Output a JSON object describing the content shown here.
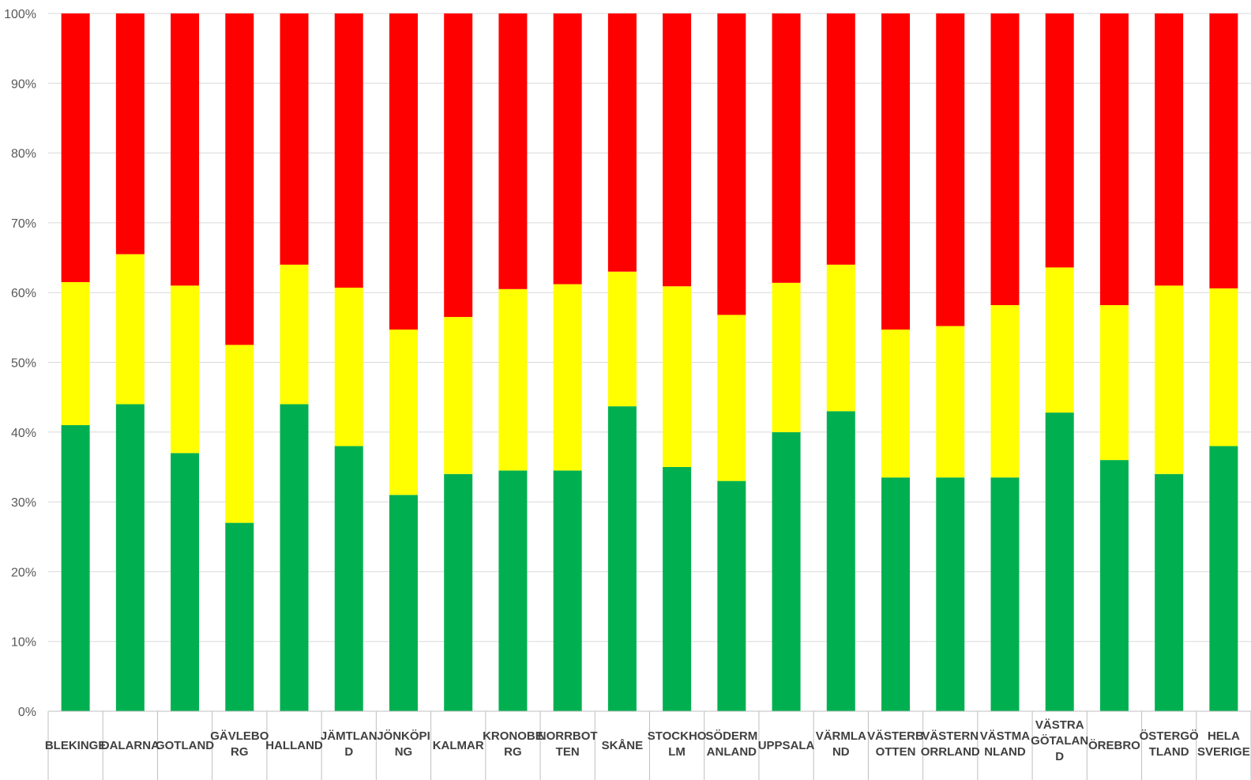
{
  "chart_data": {
    "type": "bar",
    "stacked": true,
    "percent_stacked": true,
    "categories": [
      "BLEKINGE",
      "DALARNA",
      "GOTLAND",
      "GÄVLEBORG",
      "HALLAND",
      "JÄMTLAND",
      "JÖNKÖPING",
      "KALMAR",
      "KRONOBERG",
      "NORRBOTTEN",
      "SKÅNE",
      "STOCKHOLM",
      "SÖDERMANLAND",
      "UPPSALA",
      "VÄRMLAND",
      "VÄSTERBOTTEN",
      "VÄSTERNORRLAND",
      "VÄSTMANLAND",
      "VÄSTRA GÖTALAND",
      "ÖREBRO",
      "ÖSTERGÖTLAND",
      "HELA SVERIGE"
    ],
    "category_labels": [
      [
        "BLEKINGE"
      ],
      [
        "DALARNA"
      ],
      [
        "GOTLAND"
      ],
      [
        "GÄVLEBO",
        "RG"
      ],
      [
        "HALLAND"
      ],
      [
        "JÄMTLAN",
        "D"
      ],
      [
        "JÖNKÖPI",
        "NG"
      ],
      [
        "KALMAR"
      ],
      [
        "KRONOBE",
        "RG"
      ],
      [
        "NORRBOT",
        "TEN"
      ],
      [
        "SKÅNE"
      ],
      [
        "STOCKHO",
        "LM"
      ],
      [
        "SÖDERM",
        "ANLAND"
      ],
      [
        "UPPSALA"
      ],
      [
        "VÄRMLA",
        "ND"
      ],
      [
        "VÄSTERB",
        "OTTEN"
      ],
      [
        "VÄSTERN",
        "ORRLAND"
      ],
      [
        "VÄSTMA",
        "NLAND"
      ],
      [
        "VÄSTRA",
        "GÖTALAN",
        "D"
      ],
      [
        "ÖREBRO"
      ],
      [
        "ÖSTERGÖ",
        "TLAND"
      ],
      [
        "HELA",
        "SVERIGE"
      ]
    ],
    "series": [
      {
        "color": "#00B050",
        "values": [
          41,
          44,
          37,
          27,
          44,
          38,
          31,
          34,
          34.5,
          34.5,
          43.7,
          35,
          33,
          40,
          43,
          33.5,
          33.5,
          33.5,
          42.8,
          36,
          34,
          38
        ]
      },
      {
        "color": "#FFFF00",
        "values": [
          20.5,
          21.5,
          24,
          25.5,
          20,
          22.7,
          23.7,
          22.5,
          26,
          26.7,
          19.3,
          25.9,
          23.8,
          21.4,
          21,
          21.2,
          21.7,
          24.7,
          20.8,
          22.2,
          27,
          22.6
        ]
      },
      {
        "color": "#FF0000",
        "values": [
          38.5,
          34.5,
          39,
          47.5,
          36,
          39.3,
          45.3,
          43.5,
          39.5,
          38.8,
          37,
          39.1,
          43.2,
          38.6,
          36,
          45.3,
          44.8,
          41.8,
          36.4,
          41.8,
          39,
          39.4
        ]
      }
    ],
    "y_ticks": [
      "0%",
      "10%",
      "20%",
      "30%",
      "40%",
      "50%",
      "60%",
      "70%",
      "80%",
      "90%",
      "100%"
    ],
    "ylim": [
      0,
      100
    ],
    "grid": true,
    "legend": "none"
  }
}
